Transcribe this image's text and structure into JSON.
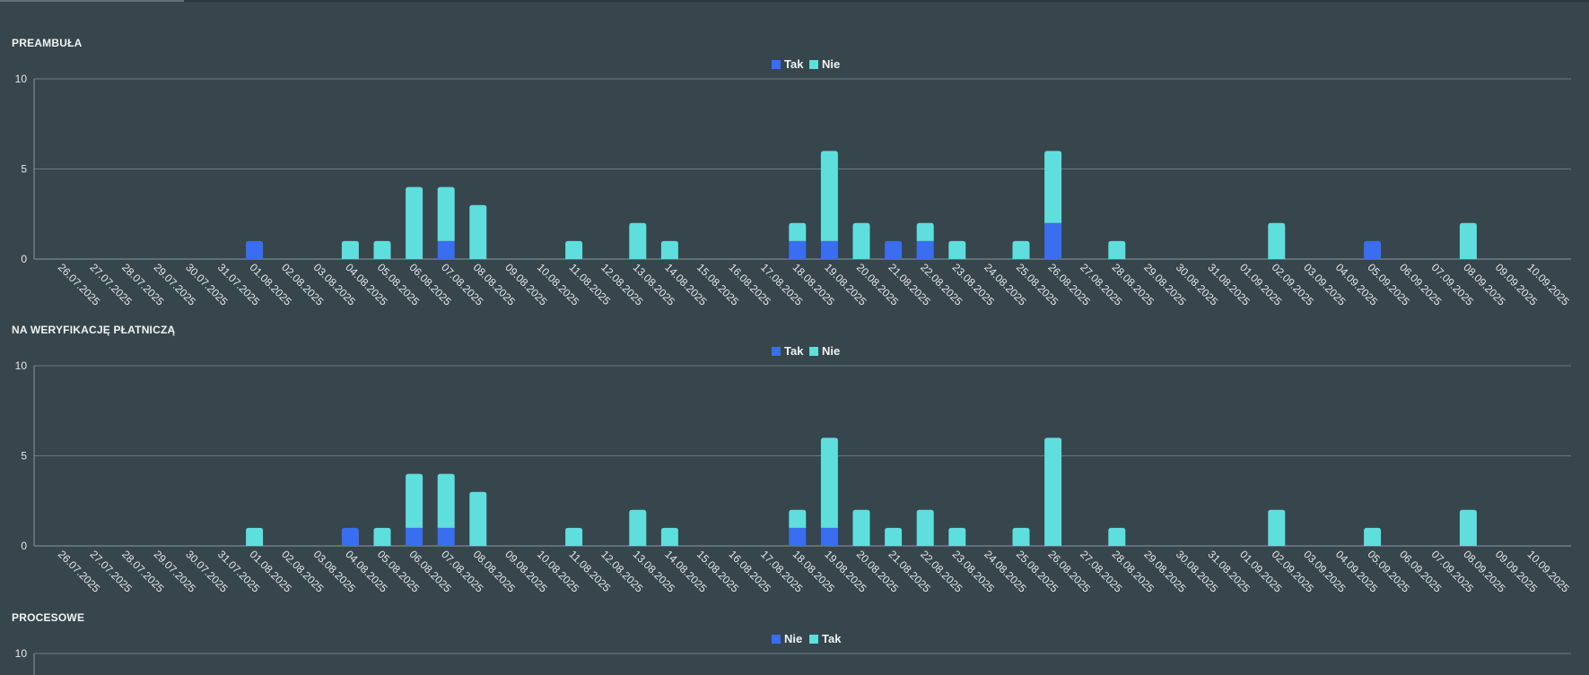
{
  "colors": {
    "background": "#37454c",
    "gridline": "#6c7a82",
    "axis": "#8a979e",
    "series_dark": "#3a6ef0",
    "series_light": "#5fdede"
  },
  "chart_data": [
    {
      "type": "bar",
      "stacked": true,
      "title": "PREAMBUŁA",
      "legend": [
        "Tak",
        "Nie"
      ],
      "legend_position": "top-center",
      "ylim": [
        0,
        10
      ],
      "yticks": [
        0,
        5,
        10
      ],
      "categories": [
        "26.07.2025",
        "27.07.2025",
        "28.07.2025",
        "29.07.2025",
        "30.07.2025",
        "31.07.2025",
        "01.08.2025",
        "02.08.2025",
        "03.08.2025",
        "04.08.2025",
        "05.08.2025",
        "06.08.2025",
        "07.08.2025",
        "08.08.2025",
        "09.08.2025",
        "10.08.2025",
        "11.08.2025",
        "12.08.2025",
        "13.08.2025",
        "14.08.2025",
        "15.08.2025",
        "16.08.2025",
        "17.08.2025",
        "18.08.2025",
        "19.08.2025",
        "20.08.2025",
        "21.08.2025",
        "22.08.2025",
        "23.08.2025",
        "24.08.2025",
        "25.08.2025",
        "26.08.2025",
        "27.08.2025",
        "28.08.2025",
        "29.08.2025",
        "30.08.2025",
        "31.08.2025",
        "01.09.2025",
        "02.09.2025",
        "03.09.2025",
        "04.09.2025",
        "05.09.2025",
        "06.09.2025",
        "07.09.2025",
        "08.09.2025",
        "09.09.2025",
        "10.09.2025"
      ],
      "series": [
        {
          "name": "Tak",
          "color": "#3a6ef0",
          "values": [
            0,
            0,
            0,
            0,
            0,
            0,
            1,
            0,
            0,
            0,
            0,
            0,
            1,
            0,
            0,
            0,
            0,
            0,
            0,
            0,
            0,
            0,
            0,
            1,
            1,
            0,
            1,
            1,
            0,
            0,
            0,
            2,
            0,
            0,
            0,
            0,
            0,
            0,
            0,
            0,
            0,
            1,
            0,
            0,
            0,
            0,
            0
          ]
        },
        {
          "name": "Nie",
          "color": "#5fdede",
          "values": [
            0,
            0,
            0,
            0,
            0,
            0,
            0,
            0,
            0,
            1,
            1,
            4,
            3,
            3,
            0,
            0,
            1,
            0,
            2,
            1,
            0,
            0,
            0,
            1,
            5,
            2,
            0,
            1,
            1,
            0,
            1,
            4,
            0,
            1,
            0,
            0,
            0,
            0,
            2,
            0,
            0,
            0,
            0,
            0,
            2,
            0,
            0
          ]
        }
      ]
    },
    {
      "type": "bar",
      "stacked": true,
      "title": "NA WERYFIKACJĘ PŁATNICZĄ",
      "legend": [
        "Tak",
        "Nie"
      ],
      "legend_position": "top-center",
      "ylim": [
        0,
        10
      ],
      "yticks": [
        0,
        5,
        10
      ],
      "categories": [
        "26.07.2025",
        "27.07.2025",
        "28.07.2025",
        "29.07.2025",
        "30.07.2025",
        "31.07.2025",
        "01.08.2025",
        "02.08.2025",
        "03.08.2025",
        "04.08.2025",
        "05.08.2025",
        "06.08.2025",
        "07.08.2025",
        "08.08.2025",
        "09.08.2025",
        "10.08.2025",
        "11.08.2025",
        "12.08.2025",
        "13.08.2025",
        "14.08.2025",
        "15.08.2025",
        "16.08.2025",
        "17.08.2025",
        "18.08.2025",
        "19.08.2025",
        "20.08.2025",
        "21.08.2025",
        "22.08.2025",
        "23.08.2025",
        "24.08.2025",
        "25.08.2025",
        "26.08.2025",
        "27.08.2025",
        "28.08.2025",
        "29.08.2025",
        "30.08.2025",
        "31.08.2025",
        "01.09.2025",
        "02.09.2025",
        "03.09.2025",
        "04.09.2025",
        "05.09.2025",
        "06.09.2025",
        "07.09.2025",
        "08.09.2025",
        "09.09.2025",
        "10.09.2025"
      ],
      "series": [
        {
          "name": "Tak",
          "color": "#3a6ef0",
          "values": [
            0,
            0,
            0,
            0,
            0,
            0,
            0,
            0,
            0,
            1,
            0,
            1,
            1,
            0,
            0,
            0,
            0,
            0,
            0,
            0,
            0,
            0,
            0,
            1,
            1,
            0,
            0,
            0,
            0,
            0,
            0,
            0,
            0,
            0,
            0,
            0,
            0,
            0,
            0,
            0,
            0,
            0,
            0,
            0,
            0,
            0,
            0
          ]
        },
        {
          "name": "Nie",
          "color": "#5fdede",
          "values": [
            0,
            0,
            0,
            0,
            0,
            0,
            1,
            0,
            0,
            0,
            1,
            3,
            3,
            3,
            0,
            0,
            1,
            0,
            2,
            1,
            0,
            0,
            0,
            1,
            5,
            2,
            1,
            2,
            1,
            0,
            1,
            6,
            0,
            1,
            0,
            0,
            0,
            0,
            2,
            0,
            0,
            1,
            0,
            0,
            2,
            0,
            0
          ]
        }
      ]
    },
    {
      "type": "bar",
      "stacked": true,
      "title": "PROCESOWE",
      "legend": [
        "Nie",
        "Tak"
      ],
      "legend_position": "top-center",
      "ylim": [
        0,
        10
      ],
      "yticks": [
        10
      ],
      "categories": [],
      "series": [
        {
          "name": "Nie",
          "color": "#3a6ef0",
          "values": []
        },
        {
          "name": "Tak",
          "color": "#5fdede",
          "values": []
        }
      ]
    }
  ]
}
